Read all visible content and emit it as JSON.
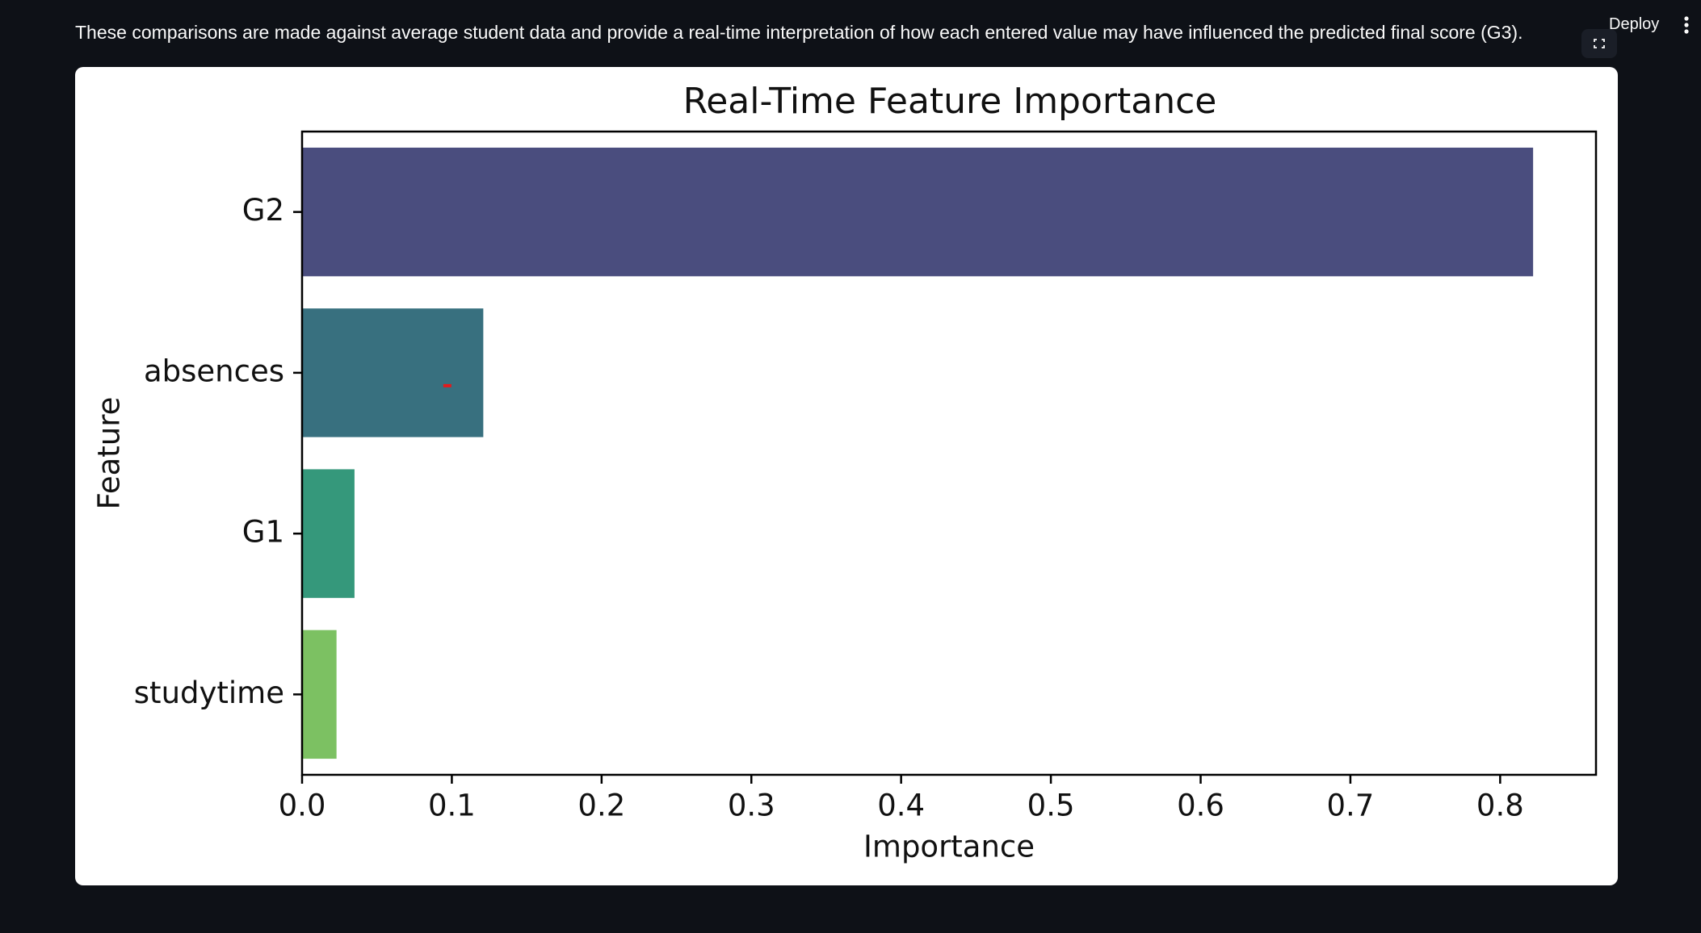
{
  "page": {
    "caption": "These comparisons are made against average student data and provide a real-time interpretation of how each entered value may have influenced the predicted final score (G3).",
    "deploy_label": "Deploy",
    "menu_icon": "vertical-ellipsis-icon",
    "fullscreen_icon": "fullscreen-icon"
  },
  "chart_data": {
    "type": "bar",
    "orientation": "horizontal",
    "title": "Real-Time Feature Importance",
    "xlabel": "Importance",
    "ylabel": "Feature",
    "categories": [
      "G2",
      "absences",
      "G1",
      "studytime"
    ],
    "values": [
      0.822,
      0.121,
      0.035,
      0.023
    ],
    "colors": [
      "#4a4d7e",
      "#38707f",
      "#35987b",
      "#7cc162"
    ],
    "xlim": [
      0,
      0.864
    ],
    "xticks": [
      "0.0",
      "0.1",
      "0.2",
      "0.3",
      "0.4",
      "0.5",
      "0.6",
      "0.7",
      "0.8"
    ],
    "grid": false,
    "error_bar": {
      "category": "absences",
      "value": 0.097,
      "color": "#e31a1c"
    }
  }
}
